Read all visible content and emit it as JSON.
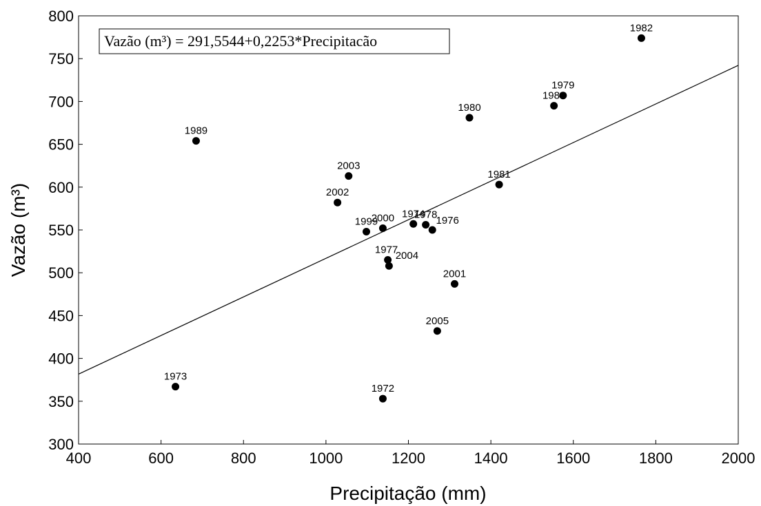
{
  "chart_data": {
    "type": "scatter",
    "title": "",
    "xlabel": "Precipitação (mm)",
    "ylabel": "Vazão (m³)",
    "xlim": [
      400,
      2000
    ],
    "ylim": [
      300,
      800
    ],
    "xticks": [
      400,
      600,
      800,
      1000,
      1200,
      1400,
      1600,
      1800,
      2000
    ],
    "yticks": [
      300,
      350,
      400,
      450,
      500,
      550,
      600,
      650,
      700,
      750,
      800
    ],
    "grid": false,
    "equation": "Vazão (m³) = 291,5544+0,2253*Precipitacão",
    "regression": {
      "intercept": 291.5544,
      "slope": 0.2253
    },
    "points": [
      {
        "label": "1972",
        "x": 1138,
        "y": 353
      },
      {
        "label": "1973",
        "x": 635,
        "y": 367
      },
      {
        "label": "1974",
        "x": 1212,
        "y": 557
      },
      {
        "label": "1976",
        "x": 1258,
        "y": 550
      },
      {
        "label": "1977",
        "x": 1150,
        "y": 515
      },
      {
        "label": "1978",
        "x": 1242,
        "y": 556
      },
      {
        "label": "1979",
        "x": 1575,
        "y": 707
      },
      {
        "label": "1980",
        "x": 1348,
        "y": 681
      },
      {
        "label": "1981",
        "x": 1420,
        "y": 603
      },
      {
        "label": "1982",
        "x": 1765,
        "y": 774
      },
      {
        "label": "1983",
        "x": 1553,
        "y": 695
      },
      {
        "label": "1989",
        "x": 685,
        "y": 654
      },
      {
        "label": "1999",
        "x": 1098,
        "y": 548
      },
      {
        "label": "2000",
        "x": 1138,
        "y": 552
      },
      {
        "label": "2001",
        "x": 1312,
        "y": 487
      },
      {
        "label": "2002",
        "x": 1028,
        "y": 582
      },
      {
        "label": "2003",
        "x": 1055,
        "y": 613
      },
      {
        "label": "2004",
        "x": 1153,
        "y": 508
      },
      {
        "label": "2005",
        "x": 1270,
        "y": 432
      }
    ]
  }
}
